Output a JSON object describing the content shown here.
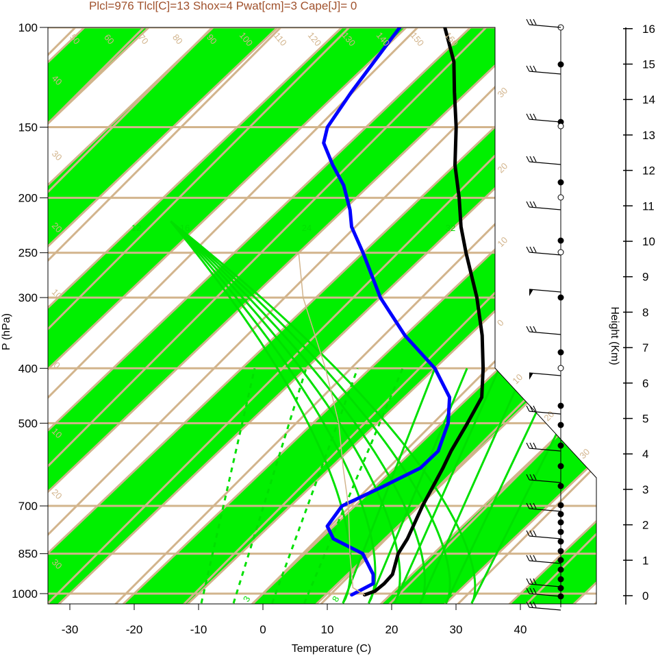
{
  "title": "Plcl=976 Tlcl[C]=13 Shox=4 Pwat[cm]=3 Cape[J]= 0",
  "colors": {
    "band_green": "#00f000",
    "grid_tan": "#d2b48c",
    "temperature": "#000000",
    "dewpoint": "#0000ff",
    "mixing_ratio": "#00e000",
    "moist_adiabat": "#00e000",
    "title": "#a0522d",
    "parcel": "#d2b48c"
  },
  "chart_data": {
    "type": "line",
    "subtype": "skew-t log-p diagram",
    "xlabel": "Temperature (C)",
    "ylabel": "P (hPa)",
    "right_axis_label": "Height (Km)",
    "xlim": [
      -34,
      50
    ],
    "ylim_hpa": [
      1050,
      100
    ],
    "pressure_ticks": [
      100,
      150,
      200,
      250,
      300,
      400,
      500,
      700,
      850,
      1000
    ],
    "temperature_ticks": [
      -30,
      -20,
      -10,
      0,
      10,
      20,
      30,
      40
    ],
    "height_ticks_km": [
      0,
      1,
      2,
      3,
      4,
      5,
      6,
      7,
      8,
      9,
      10,
      11,
      12,
      13,
      14,
      15,
      16
    ],
    "isotherm_labels": [
      "50",
      "60",
      "70",
      "80",
      "90",
      "100",
      "110",
      "120",
      "130",
      "140",
      "150",
      "160"
    ],
    "dry_adiabat_labels": [
      "30",
      "20",
      "10",
      "0",
      "10",
      "20",
      "30"
    ],
    "left_edge_labels": [
      "40",
      "30",
      "20",
      "10",
      "0",
      "10",
      "20",
      "30"
    ],
    "mixing_ratio_labels": [
      "12",
      "16",
      "24",
      "32"
    ],
    "moist_adiabat_labels": [
      "3",
      "8"
    ],
    "series": [
      {
        "name": "",
        "role": "temperature",
        "points": [
          [
            1005,
            16
          ],
          [
            990,
            17
          ],
          [
            960,
            17.2
          ],
          [
            925,
            17
          ],
          [
            850,
            14.5
          ],
          [
            800,
            13.5
          ],
          [
            700,
            10.5
          ],
          [
            600,
            7.5
          ],
          [
            560,
            6
          ],
          [
            500,
            4
          ],
          [
            450,
            2
          ],
          [
            400,
            -2.5
          ],
          [
            350,
            -8
          ],
          [
            300,
            -15
          ],
          [
            250,
            -24
          ],
          [
            225,
            -29
          ],
          [
            200,
            -34
          ],
          [
            175,
            -40
          ],
          [
            150,
            -46
          ],
          [
            130,
            -52
          ],
          [
            115,
            -57
          ],
          [
            100,
            -64
          ]
        ]
      },
      {
        "name": "",
        "role": "dewpoint",
        "points": [
          [
            1005,
            14
          ],
          [
            990,
            14.5
          ],
          [
            960,
            15.5
          ],
          [
            925,
            14
          ],
          [
            850,
            9
          ],
          [
            800,
            2
          ],
          [
            760,
            -1
          ],
          [
            700,
            -2
          ],
          [
            650,
            1
          ],
          [
            600,
            4
          ],
          [
            560,
            4
          ],
          [
            500,
            1
          ],
          [
            450,
            -3
          ],
          [
            400,
            -10
          ],
          [
            350,
            -20
          ],
          [
            300,
            -30
          ],
          [
            250,
            -40
          ],
          [
            225,
            -46
          ],
          [
            210,
            -49
          ],
          [
            190,
            -54
          ],
          [
            175,
            -59
          ],
          [
            160,
            -64
          ],
          [
            150,
            -66
          ],
          [
            130,
            -68
          ],
          [
            100,
            -71
          ]
        ]
      },
      {
        "name": "",
        "role": "parcel",
        "points": [
          [
            1005,
            16
          ],
          [
            976,
            13
          ],
          [
            850,
            7
          ],
          [
            700,
            -1
          ],
          [
            600,
            -8
          ],
          [
            500,
            -16
          ],
          [
            400,
            -27
          ],
          [
            300,
            -42
          ],
          [
            250,
            -50
          ]
        ]
      }
    ],
    "wind_barbs_hpa": [
      1000,
      975,
      950,
      925,
      900,
      850,
      800,
      700,
      600,
      500,
      400,
      300,
      250,
      200,
      150,
      100
    ]
  }
}
